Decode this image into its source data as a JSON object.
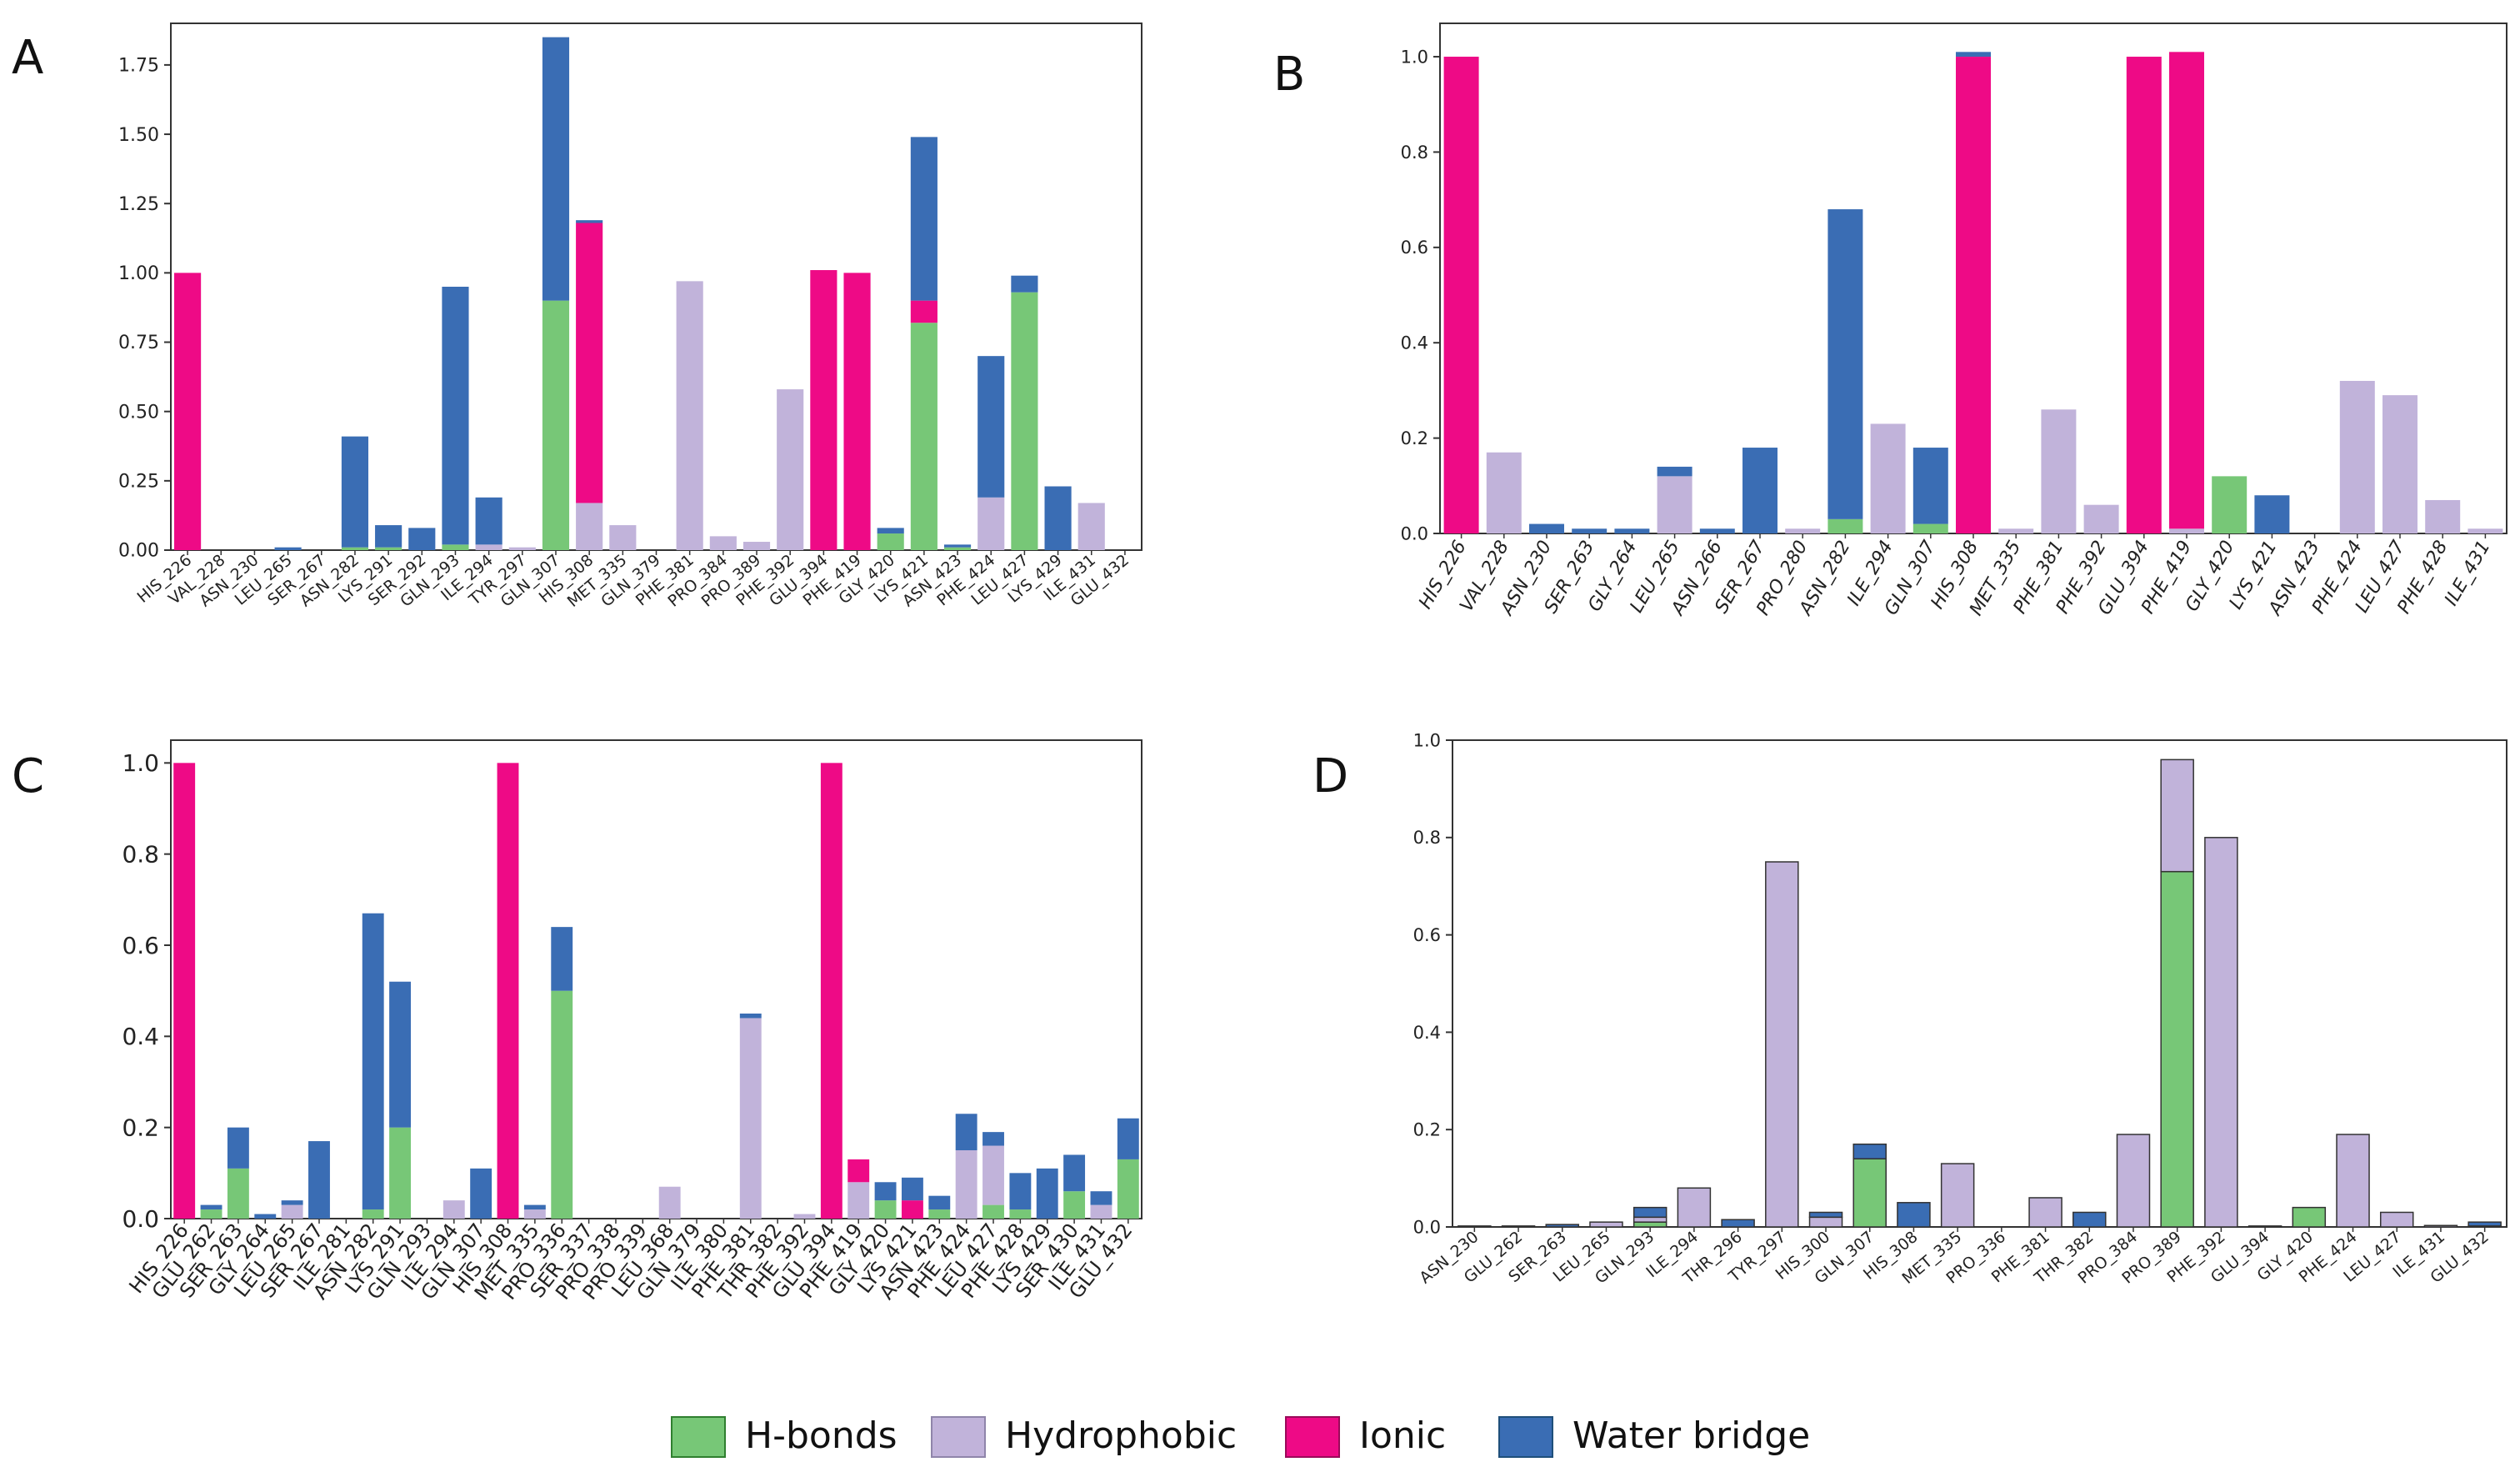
{
  "colors": {
    "hbonds": "#77c777",
    "hydrophobic": "#c1b3da",
    "ionic": "#ee0a86",
    "water_bridge": "#3a6db4",
    "border": "#333333",
    "tick_text": "#555555"
  },
  "legend": {
    "position": "bottom-center",
    "items": [
      {
        "label": "H-bonds",
        "key": "hbonds"
      },
      {
        "label": "Hydrophobic",
        "key": "hydrophobic"
      },
      {
        "label": "Ionic",
        "key": "ionic"
      },
      {
        "label": "Water bridge",
        "key": "water_bridge"
      }
    ]
  },
  "chart_data": [
    {
      "panel": "A",
      "type": "bar",
      "stacked": true,
      "ylim": [
        0,
        1.9
      ],
      "yticks": [
        "0.00",
        "0.25",
        "0.50",
        "0.75",
        "1.00",
        "1.25",
        "1.50",
        "1.75"
      ],
      "ytick_values": [
        0,
        0.25,
        0.5,
        0.75,
        1.0,
        1.25,
        1.5,
        1.75
      ],
      "grid": false,
      "categories": [
        "HIS_226",
        "VAL_228",
        "ASN_230",
        "LEU_265",
        "SER_267",
        "ASN_282",
        "LYS_291",
        "SER_292",
        "GLN_293",
        "ILE_294",
        "TYR_297",
        "GLN_307",
        "HIS_308",
        "MET_335",
        "GLN_379",
        "PHE_381",
        "PRO_384",
        "PRO_389",
        "PHE_392",
        "GLU_394",
        "PHE_419",
        "GLY_420",
        "LYS_421",
        "ASN_423",
        "PHE_424",
        "LEU_427",
        "LYS_429",
        "ILE_431",
        "GLU_432"
      ],
      "series": [
        {
          "key": "hbonds",
          "values": [
            0,
            0,
            0,
            0,
            0,
            0.01,
            0.01,
            0,
            0.02,
            0,
            0,
            0.9,
            0,
            0,
            0,
            0,
            0,
            0,
            0,
            0,
            0,
            0.06,
            0.82,
            0.01,
            0,
            0.93,
            0,
            0,
            0
          ]
        },
        {
          "key": "hydrophobic",
          "values": [
            0,
            0,
            0,
            0,
            0,
            0,
            0,
            0,
            0,
            0.02,
            0.01,
            0,
            0.17,
            0.09,
            0,
            0.97,
            0.05,
            0.03,
            0.58,
            0,
            0,
            0,
            0,
            0,
            0.19,
            0,
            0,
            0.17,
            0
          ]
        },
        {
          "key": "ionic",
          "values": [
            1.0,
            0,
            0,
            0,
            0,
            0,
            0,
            0,
            0,
            0,
            0,
            0,
            1.01,
            0,
            0,
            0,
            0,
            0,
            0,
            1.01,
            1.0,
            0,
            0.08,
            0,
            0,
            0,
            0,
            0,
            0
          ]
        },
        {
          "key": "water_bridge",
          "values": [
            0,
            0,
            0,
            0.01,
            0,
            0.4,
            0.08,
            0.08,
            0.93,
            0.17,
            0,
            0.95,
            0.01,
            0,
            0,
            0,
            0,
            0,
            0,
            0,
            0,
            0.02,
            0.59,
            0.01,
            0.51,
            0.06,
            0.23,
            0,
            0
          ]
        }
      ]
    },
    {
      "panel": "B",
      "type": "bar",
      "stacked": true,
      "ylim": [
        0,
        1.07
      ],
      "yticks": [
        "0.0",
        "0.2",
        "0.4",
        "0.6",
        "0.8",
        "1.0"
      ],
      "ytick_values": [
        0,
        0.2,
        0.4,
        0.6,
        0.8,
        1.0
      ],
      "grid": false,
      "categories": [
        "HIS_226",
        "VAL_228",
        "ASN_230",
        "SER_263",
        "GLY_264",
        "LEU_265",
        "ASN_266",
        "SER_267",
        "PRO_280",
        "ASN_282",
        "ILE_294",
        "GLN_307",
        "HIS_308",
        "MET_335",
        "PHE_381",
        "PHE_392",
        "GLU_394",
        "PHE_419",
        "GLY_420",
        "LYS_421",
        "ASN_423",
        "PHE_424",
        "LEU_427",
        "PHE_428",
        "ILE_431"
      ],
      "series": [
        {
          "key": "hbonds",
          "values": [
            0,
            0,
            0,
            0,
            0,
            0,
            0,
            0,
            0,
            0.03,
            0,
            0.02,
            0,
            0,
            0,
            0,
            0,
            0,
            0.12,
            0,
            0,
            0,
            0,
            0,
            0
          ]
        },
        {
          "key": "hydrophobic",
          "values": [
            0,
            0.17,
            0,
            0,
            0,
            0.12,
            0,
            0,
            0.01,
            0,
            0.23,
            0,
            0,
            0.01,
            0.26,
            0.06,
            0,
            0.01,
            0,
            0,
            0,
            0.32,
            0.29,
            0.07,
            0.01
          ]
        },
        {
          "key": "ionic",
          "values": [
            1.0,
            0,
            0,
            0,
            0,
            0,
            0,
            0,
            0,
            0,
            0,
            0,
            1.0,
            0,
            0,
            0,
            1.0,
            1.0,
            0,
            0,
            0,
            0,
            0,
            0,
            0
          ]
        },
        {
          "key": "water_bridge",
          "values": [
            0,
            0,
            0.02,
            0.01,
            0.01,
            0.02,
            0.01,
            0.18,
            0,
            0.65,
            0,
            0.16,
            0.01,
            0,
            0,
            0,
            0,
            0,
            0,
            0.08,
            0,
            0,
            0,
            0,
            0
          ]
        }
      ]
    },
    {
      "panel": "C",
      "type": "bar",
      "stacked": true,
      "ylim": [
        0,
        1.05
      ],
      "yticks": [
        "0.0",
        "0.2",
        "0.4",
        "0.6",
        "0.8",
        "1.0"
      ],
      "ytick_values": [
        0,
        0.2,
        0.4,
        0.6,
        0.8,
        1.0
      ],
      "grid": false,
      "categories": [
        "HIS_226",
        "GLU_262",
        "SER_263",
        "GLY_264",
        "LEU_265",
        "SER_267",
        "ILE_281",
        "ASN_282",
        "LYS_291",
        "GLN_293",
        "ILE_294",
        "GLN_307",
        "HIS_308",
        "MET_335",
        "PRO_336",
        "SER_337",
        "PRO_338",
        "PRO_339",
        "LEU_368",
        "GLN_379",
        "ILE_380",
        "PHE_381",
        "THR_382",
        "PHE_392",
        "GLU_394",
        "PHE_419",
        "GLY_420",
        "LYS_421",
        "ASN_423",
        "PHE_424",
        "LEU_427",
        "PHE_428",
        "LYS_429",
        "SER_430",
        "ILE_431",
        "GLU_432"
      ],
      "series": [
        {
          "key": "hbonds",
          "values": [
            0,
            0.02,
            0.11,
            0,
            0,
            0,
            0,
            0.02,
            0.2,
            0,
            0,
            0,
            0,
            0,
            0.5,
            0,
            0,
            0,
            0,
            0,
            0,
            0,
            0,
            0,
            0,
            0,
            0.04,
            0,
            0.02,
            0,
            0.03,
            0.02,
            0,
            0.06,
            0,
            0.13
          ]
        },
        {
          "key": "hydrophobic",
          "values": [
            0,
            0,
            0,
            0,
            0.03,
            0,
            0,
            0,
            0,
            0,
            0.04,
            0,
            0,
            0.02,
            0,
            0,
            0,
            0,
            0.07,
            0,
            0,
            0.44,
            0,
            0.01,
            0,
            0.08,
            0,
            0,
            0,
            0.15,
            0.13,
            0,
            0,
            0,
            0.03,
            0
          ]
        },
        {
          "key": "ionic",
          "values": [
            1.0,
            0,
            0,
            0,
            0,
            0,
            0,
            0,
            0,
            0,
            0,
            0,
            1.0,
            0,
            0,
            0,
            0,
            0,
            0,
            0,
            0,
            0,
            0,
            0,
            1.0,
            0.05,
            0,
            0.04,
            0,
            0,
            0,
            0,
            0,
            0,
            0,
            0
          ]
        },
        {
          "key": "water_bridge",
          "values": [
            0,
            0.01,
            0.09,
            0.01,
            0.01,
            0.17,
            0,
            0.65,
            0.32,
            0,
            0,
            0.11,
            0,
            0.01,
            0.14,
            0,
            0,
            0,
            0,
            0,
            0,
            0.01,
            0,
            0,
            0,
            0,
            0.04,
            0.05,
            0.03,
            0.08,
            0.03,
            0.08,
            0.11,
            0.08,
            0.03,
            0.09
          ]
        }
      ]
    },
    {
      "panel": "D",
      "type": "bar",
      "stacked": true,
      "ylim": [
        0,
        1.0
      ],
      "yticks": [
        "0.0",
        "0.2",
        "0.4",
        "0.6",
        "0.8",
        "1.0"
      ],
      "ytick_values": [
        0,
        0.2,
        0.4,
        0.6,
        0.8,
        1.0
      ],
      "grid": false,
      "categories": [
        "ASN_230",
        "GLU_262",
        "SER_263",
        "LEU_265",
        "GLN_293",
        "ILE_294",
        "THR_296",
        "TYR_297",
        "HIS_300",
        "GLN_307",
        "HIS_308",
        "MET_335",
        "PRO_336",
        "PHE_381",
        "THR_382",
        "PRO_384",
        "PRO_389",
        "PHE_392",
        "GLU_394",
        "GLY_420",
        "PHE_424",
        "LEU_427",
        "ILE_431",
        "GLU_432"
      ],
      "series": [
        {
          "key": "hbonds",
          "values": [
            0,
            0,
            0,
            0,
            0.01,
            0,
            0,
            0,
            0,
            0.14,
            0,
            0,
            0,
            0,
            0,
            0,
            0.73,
            0,
            0,
            0.04,
            0,
            0,
            0,
            0
          ]
        },
        {
          "key": "hydrophobic",
          "values": [
            0.002,
            0.002,
            0,
            0.01,
            0.01,
            0.08,
            0,
            0.75,
            0.02,
            0,
            0,
            0.13,
            0,
            0.06,
            0,
            0.19,
            0.23,
            0.8,
            0.002,
            0,
            0.19,
            0.03,
            0.003,
            0.002
          ]
        },
        {
          "key": "ionic",
          "values": [
            0,
            0,
            0,
            0,
            0,
            0,
            0,
            0,
            0,
            0,
            0,
            0,
            0,
            0,
            0,
            0,
            0,
            0,
            0,
            0,
            0,
            0,
            0,
            0
          ]
        },
        {
          "key": "water_bridge",
          "values": [
            0,
            0,
            0.005,
            0,
            0.02,
            0,
            0.015,
            0,
            0.01,
            0.03,
            0.05,
            0,
            0,
            0,
            0.03,
            0,
            0,
            0,
            0,
            0,
            0,
            0,
            0,
            0.008
          ]
        }
      ]
    }
  ]
}
